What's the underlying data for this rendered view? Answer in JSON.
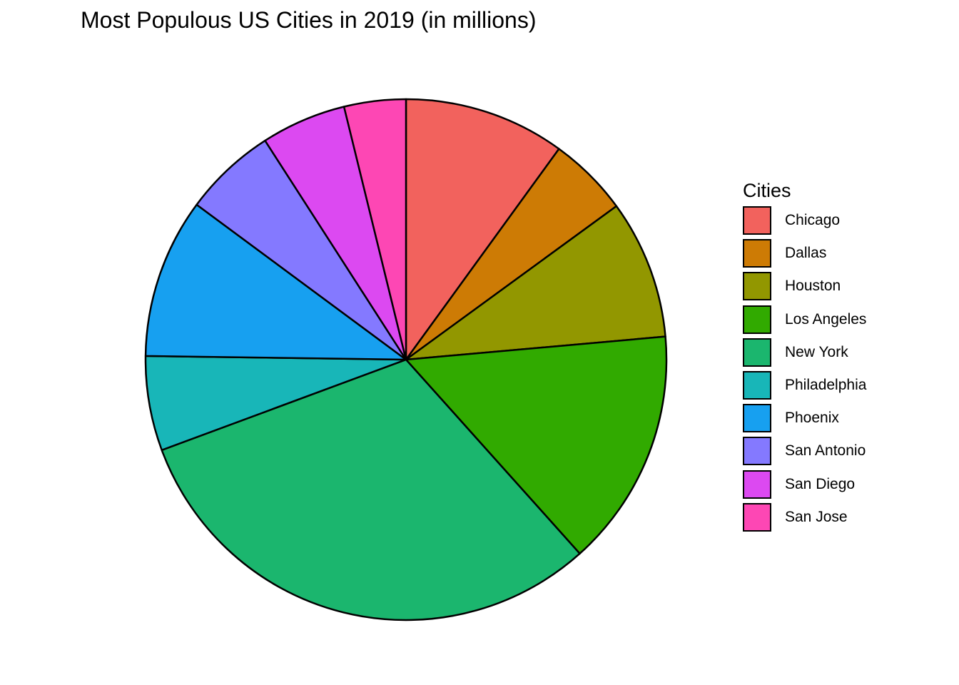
{
  "chart_data": {
    "type": "pie",
    "title": "Most Populous US Cities in 2019 (in millions)",
    "legend_title": "Cities",
    "legend_position": "right",
    "slice_order": "clockwise from top",
    "slices": [
      {
        "label": "Chicago",
        "value": 2.69,
        "color": "#F8766D"
      },
      {
        "label": "Dallas",
        "value": 1.34,
        "color": "#D39200"
      },
      {
        "label": "Houston",
        "value": 2.32,
        "color": "#93AA00"
      },
      {
        "label": "Los Angeles",
        "value": 3.98,
        "color": "#00BA38"
      },
      {
        "label": "New York",
        "value": 8.34,
        "color": "#00C19F"
      },
      {
        "label": "Philadelphia",
        "value": 1.58,
        "color": "#00B9E3"
      },
      {
        "label": "Phoenix",
        "value": 2.67,
        "color": "#619CFF"
      },
      {
        "label": "San Antonio",
        "value": 1.55,
        "color": "#DB72FB"
      },
      {
        "label": "San Diego",
        "value": 1.42,
        "color": "#FF61C3"
      },
      {
        "label": "San Jose",
        "value": 1.03,
        "color": "#FF4FB4"
      }
    ]
  }
}
